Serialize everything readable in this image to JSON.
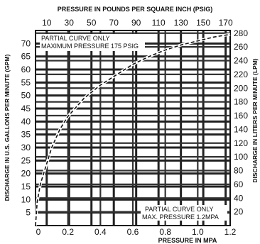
{
  "chart_data": {
    "type": "line",
    "top_axis_title": "PRESSURE IN POUNDS PER SQUARE INCH (PSIG)",
    "bottom_axis_title": "PRESSURE IN MPA",
    "left_axis_title": "DISCHARGE IN U.S. GALLONS PER MINUTE (GPM)",
    "right_axis_title": "DISCHARGE IN LITERS PER MINUTE (LPM)",
    "psig_ticks": [
      "10",
      "30",
      "50",
      "70",
      "90",
      "110",
      "130",
      "150",
      "170"
    ],
    "psig_values": [
      10,
      30,
      50,
      70,
      90,
      110,
      130,
      150,
      170
    ],
    "mpa_ticks": [
      "0",
      "0.2",
      "0.4",
      "0.6",
      "0.8",
      "1.0",
      "1.2"
    ],
    "mpa_values": [
      0,
      0.2,
      0.4,
      0.6,
      0.8,
      1.0,
      1.2
    ],
    "gpm_ticks": [
      "5",
      "10",
      "15",
      "20",
      "25",
      "30",
      "35",
      "40",
      "45",
      "50",
      "55",
      "60",
      "65",
      "70"
    ],
    "gpm_values": [
      5,
      10,
      15,
      20,
      25,
      30,
      35,
      40,
      45,
      50,
      55,
      60,
      65,
      70
    ],
    "lpm_ticks": [
      "20",
      "40",
      "60",
      "80",
      "100",
      "120",
      "140",
      "160",
      "180",
      "200",
      "220",
      "240",
      "260",
      "280"
    ],
    "lpm_values": [
      20,
      40,
      60,
      80,
      100,
      120,
      140,
      160,
      180,
      200,
      220,
      240,
      260,
      280
    ],
    "xlim_mpa": [
      0,
      1.2
    ],
    "ylim_gpm": [
      0,
      75
    ],
    "grid": true,
    "note_top": [
      "PARTIAL CURVE ONLY",
      "MAXIMUM PRESSURE 175 PSIG"
    ],
    "note_bottom": [
      "PARTIAL CURVE ONLY",
      "MAX. PRESSURE 1.2MPA"
    ],
    "series": [
      {
        "style": "dashed",
        "x": [
          0.0,
          0.01,
          0.03,
          0.06,
          0.1,
          0.15,
          0.2,
          0.3,
          0.4,
          0.5,
          0.6,
          0.7,
          0.8,
          0.9,
          1.0,
          1.1,
          1.2
        ],
        "y": [
          0,
          9,
          16,
          22,
          30,
          37,
          42,
          49,
          54,
          58,
          62,
          65,
          67.5,
          69.5,
          71,
          72.5,
          73.5
        ]
      }
    ]
  }
}
